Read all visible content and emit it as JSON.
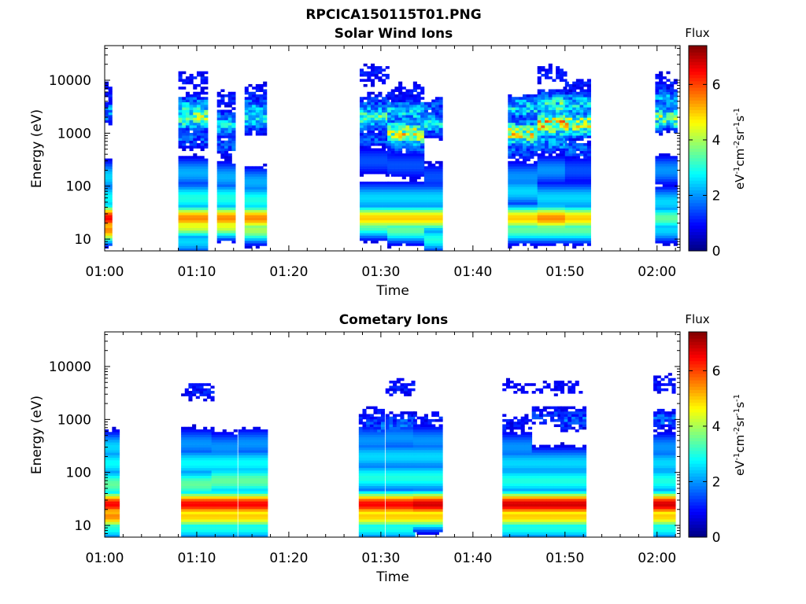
{
  "figure_title": "RPCICA150115T01.PNG",
  "chart_data": [
    {
      "type": "heatmap",
      "title": "Solar Wind Ions",
      "xlabel": "Time",
      "ylabel": "Energy (eV)",
      "yscale": "log",
      "ylim": [
        6,
        45000
      ],
      "yticks": [
        {
          "value": 10,
          "label": "10"
        },
        {
          "value": 100,
          "label": "100"
        },
        {
          "value": 1000,
          "label": "1000"
        },
        {
          "value": 10000,
          "label": "10000"
        }
      ],
      "xlim_minutes": [
        60,
        122.5
      ],
      "xticks": [
        "01:00",
        "01:10",
        "01:20",
        "01:30",
        "01:40",
        "01:50",
        "02:00"
      ],
      "xtick_minutes": [
        60,
        70,
        80,
        90,
        100,
        110,
        120
      ],
      "colorbar": {
        "title": "Flux",
        "label": "eV-1cm-2sr-1s-1",
        "range": [
          0,
          7.4
        ],
        "ticks": [
          "0",
          "2",
          "4",
          "6"
        ],
        "tick_values": [
          0,
          2,
          4,
          6
        ],
        "colormap": "jet"
      },
      "bursts": [
        {
          "start": 60.0,
          "end": 60.8,
          "low": [
            [
              25,
              6.5
            ],
            [
              15,
              5.5
            ]
          ],
          "high": [
            [
              2500,
              2.0
            ],
            [
              6000,
              1.0
            ]
          ],
          "mid": [
            [
              150,
              2.5
            ],
            [
              60,
              2.8
            ]
          ]
        },
        {
          "start": 68.0,
          "end": 71.2,
          "low": [
            [
              25,
              5.5
            ],
            [
              18,
              4.5
            ],
            [
              9,
              2.5
            ]
          ],
          "high": [
            [
              2000,
              3.5
            ],
            [
              3000,
              2.5
            ],
            [
              800,
              1.5
            ],
            [
              10000,
              1.0
            ]
          ],
          "mid": [
            [
              60,
              3.0
            ],
            [
              180,
              2.2
            ]
          ]
        },
        {
          "start": 72.2,
          "end": 74.2,
          "low": [
            [
              25,
              5.5
            ],
            [
              18,
              4.5
            ]
          ],
          "high": [
            [
              1500,
              2.5
            ],
            [
              600,
              1.5
            ],
            [
              4500,
              1.0
            ]
          ],
          "mid": [
            [
              60,
              3.0
            ],
            [
              150,
              2.2
            ]
          ]
        },
        {
          "start": 75.2,
          "end": 77.4,
          "low": [
            [
              25,
              5.5
            ],
            [
              15,
              4.0
            ]
          ],
          "high": [
            [
              1800,
              2.5
            ],
            [
              3000,
              2.0
            ],
            [
              5500,
              1.0
            ]
          ],
          "mid": [
            [
              55,
              3.0
            ],
            [
              120,
              2.2
            ]
          ]
        },
        {
          "start": 87.7,
          "end": 90.7,
          "low": [
            [
              25,
              5.0
            ],
            [
              18,
              3.5
            ]
          ],
          "high": [
            [
              2000,
              3.0
            ],
            [
              3500,
              1.5
            ],
            [
              800,
              1.5
            ],
            [
              13000,
              1.0
            ]
          ],
          "mid": [
            [
              60,
              2.5
            ],
            [
              300,
              1.5
            ]
          ]
        },
        {
          "start": 90.7,
          "end": 94.7,
          "low": [
            [
              25,
              5.0
            ],
            [
              15,
              3.5
            ]
          ],
          "high": [
            [
              1000,
              4.0
            ],
            [
              2500,
              2.5
            ],
            [
              600,
              1.5
            ],
            [
              6000,
              1.0
            ]
          ],
          "mid": [
            [
              60,
              2.5
            ],
            [
              250,
              1.5
            ]
          ]
        },
        {
          "start": 94.7,
          "end": 96.5,
          "low": [
            [
              25,
              5.0
            ],
            [
              10,
              3.0
            ]
          ],
          "high": [
            [
              1500,
              2.5
            ],
            [
              3000,
              1.5
            ]
          ],
          "mid": [
            [
              60,
              2.5
            ],
            [
              150,
              1.5
            ]
          ]
        },
        {
          "start": 103.8,
          "end": 107.0,
          "low": [
            [
              25,
              5.0
            ],
            [
              15,
              3.5
            ]
          ],
          "high": [
            [
              1000,
              4.0
            ],
            [
              3000,
              2.5
            ],
            [
              500,
              1.5
            ]
          ],
          "mid": [
            [
              80,
              2.5
            ],
            [
              150,
              2.0
            ]
          ]
        },
        {
          "start": 107.0,
          "end": 110.0,
          "low": [
            [
              25,
              5.5
            ],
            [
              15,
              3.5
            ]
          ],
          "high": [
            [
              1500,
              4.5
            ],
            [
              3500,
              3.0
            ],
            [
              700,
              2.0
            ],
            [
              13000,
              1.0
            ]
          ],
          "mid": [
            [
              60,
              2.5
            ],
            [
              200,
              2.0
            ]
          ]
        },
        {
          "start": 110.0,
          "end": 112.5,
          "low": [
            [
              25,
              5.0
            ],
            [
              15,
              3.5
            ]
          ],
          "high": [
            [
              1500,
              4.0
            ],
            [
              3500,
              2.5
            ],
            [
              8000,
              1.0
            ],
            [
              500,
              1.5
            ]
          ],
          "mid": [
            [
              60,
              2.5
            ],
            [
              200,
              1.5
            ]
          ]
        },
        {
          "start": 119.8,
          "end": 122.0,
          "low": [
            [
              25,
              3.5
            ],
            [
              15,
              2.5
            ]
          ],
          "high": [
            [
              2000,
              3.5
            ],
            [
              4500,
              2.0
            ],
            [
              9000,
              1.0
            ]
          ],
          "mid": [
            [
              50,
              2.5
            ],
            [
              200,
              2.0
            ]
          ]
        }
      ]
    },
    {
      "type": "heatmap",
      "title": "Cometary Ions",
      "xlabel": "Time",
      "ylabel": "Energy (eV)",
      "yscale": "log",
      "ylim": [
        6,
        45000
      ],
      "yticks": [
        {
          "value": 10,
          "label": "10"
        },
        {
          "value": 100,
          "label": "100"
        },
        {
          "value": 1000,
          "label": "1000"
        },
        {
          "value": 10000,
          "label": "10000"
        }
      ],
      "xlim_minutes": [
        60,
        122.5
      ],
      "xticks": [
        "01:00",
        "01:10",
        "01:20",
        "01:30",
        "01:40",
        "01:50",
        "02:00"
      ],
      "xtick_minutes": [
        60,
        70,
        80,
        90,
        100,
        110,
        120
      ],
      "colorbar": {
        "title": "Flux",
        "label": "eV-1cm-2sr-1s-1",
        "range": [
          0,
          7.4
        ],
        "ticks": [
          "0",
          "2",
          "4",
          "6"
        ],
        "tick_values": [
          0,
          2,
          4,
          6
        ],
        "colormap": "jet"
      },
      "bursts": [
        {
          "start": 60.0,
          "end": 61.4,
          "low": [
            [
              25,
              6.5
            ],
            [
              15,
              5.5
            ],
            [
              9,
              3.0
            ]
          ],
          "high": [],
          "mid": [
            [
              60,
              3.5
            ],
            [
              150,
              2.8
            ],
            [
              300,
              2.5
            ]
          ]
        },
        {
          "start": 68.3,
          "end": 71.6,
          "low": [
            [
              25,
              6.5
            ],
            [
              15,
              5.0
            ],
            [
              9,
              3.0
            ]
          ],
          "high": [
            [
              3500,
              1.0
            ]
          ],
          "mid": [
            [
              60,
              3.5
            ],
            [
              150,
              2.8
            ],
            [
              350,
              2.0
            ]
          ]
        },
        {
          "start": 71.6,
          "end": 74.4,
          "low": [
            [
              25,
              6.5
            ],
            [
              15,
              5.0
            ],
            [
              9,
              3.0
            ]
          ],
          "high": [],
          "mid": [
            [
              70,
              3.5
            ],
            [
              150,
              2.8
            ],
            [
              300,
              2.0
            ]
          ]
        },
        {
          "start": 74.5,
          "end": 77.4,
          "low": [
            [
              25,
              6.5
            ],
            [
              15,
              5.0
            ],
            [
              9,
              3.0
            ]
          ],
          "high": [],
          "mid": [
            [
              70,
              3.5
            ],
            [
              150,
              2.8
            ],
            [
              350,
              2.0
            ]
          ]
        },
        {
          "start": 87.6,
          "end": 90.4,
          "low": [
            [
              25,
              6.5
            ],
            [
              15,
              5.0
            ],
            [
              9,
              3.0
            ]
          ],
          "high": [
            [
              700,
              1.5
            ],
            [
              1200,
              1.0
            ]
          ],
          "mid": [
            [
              80,
              3.0
            ],
            [
              200,
              2.5
            ],
            [
              400,
              2.0
            ]
          ]
        },
        {
          "start": 90.5,
          "end": 93.4,
          "low": [
            [
              25,
              6.5
            ],
            [
              15,
              5.0
            ],
            [
              9,
              3.0
            ]
          ],
          "high": [
            [
              800,
              1.5
            ],
            [
              4000,
              1.0
            ]
          ],
          "mid": [
            [
              80,
              3.0
            ],
            [
              200,
              2.5
            ],
            [
              450,
              2.0
            ]
          ]
        },
        {
          "start": 93.5,
          "end": 96.4,
          "low": [
            [
              25,
              6.8
            ],
            [
              15,
              5.0
            ]
          ],
          "high": [
            [
              1000,
              1.0
            ]
          ],
          "mid": [
            [
              80,
              3.0
            ],
            [
              200,
              2.5
            ],
            [
              400,
              2.0
            ]
          ]
        },
        {
          "start": 103.2,
          "end": 106.3,
          "low": [
            [
              25,
              6.8
            ],
            [
              15,
              5.0
            ],
            [
              9,
              3.0
            ]
          ],
          "high": [
            [
              800,
              1.0
            ],
            [
              4000,
              0.8
            ]
          ],
          "mid": [
            [
              70,
              3.0
            ],
            [
              150,
              2.5
            ],
            [
              300,
              2.0
            ]
          ]
        },
        {
          "start": 106.4,
          "end": 109.3,
          "low": [
            [
              25,
              6.8
            ],
            [
              15,
              5.0
            ],
            [
              9,
              3.0
            ]
          ],
          "high": [
            [
              1200,
              1.2
            ],
            [
              4000,
              0.8
            ]
          ],
          "mid": [
            [
              70,
              3.0
            ],
            [
              150,
              2.5
            ]
          ]
        },
        {
          "start": 109.5,
          "end": 112.3,
          "low": [
            [
              25,
              6.8
            ],
            [
              15,
              5.0
            ],
            [
              9,
              3.0
            ]
          ],
          "high": [
            [
              1000,
              1.5
            ],
            [
              4000,
              0.8
            ]
          ],
          "mid": [
            [
              70,
              3.0
            ],
            [
              150,
              2.5
            ]
          ]
        },
        {
          "start": 119.6,
          "end": 122.0,
          "low": [
            [
              25,
              6.8
            ],
            [
              15,
              5.0
            ],
            [
              9,
              3.0
            ]
          ],
          "high": [
            [
              1000,
              1.5
            ],
            [
              4500,
              1.0
            ]
          ],
          "mid": [
            [
              70,
              3.0
            ],
            [
              150,
              2.5
            ],
            [
              300,
              2.0
            ]
          ]
        }
      ]
    }
  ]
}
